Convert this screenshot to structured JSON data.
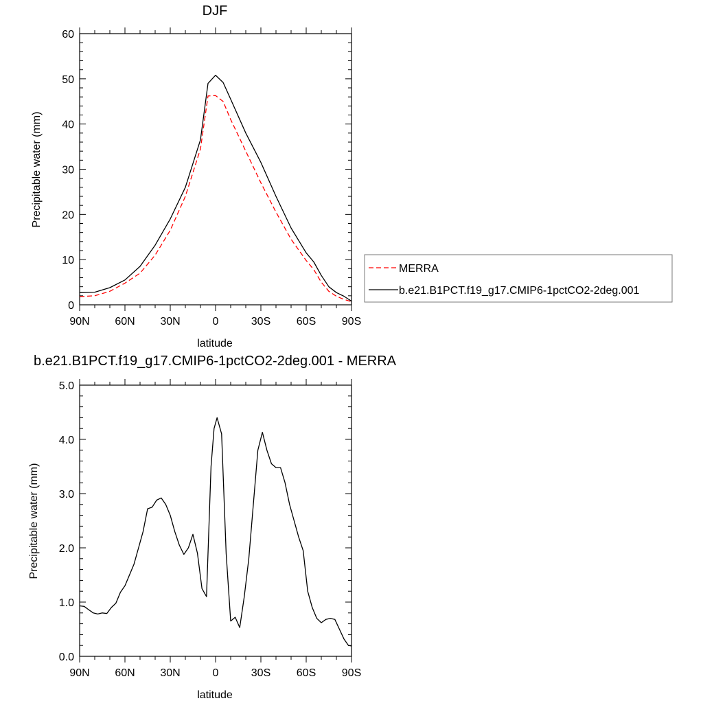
{
  "chart_data": [
    {
      "type": "line",
      "title": "DJF",
      "xlabel": "latitude",
      "ylabel": "Precipitable water (mm)",
      "xlim": [
        90,
        -90
      ],
      "ylim": [
        0,
        60
      ],
      "xticks": [
        90,
        60,
        30,
        0,
        -30,
        -60,
        -90
      ],
      "xtick_labels": [
        "90N",
        "60N",
        "30N",
        "0",
        "30S",
        "60S",
        "90S"
      ],
      "yticks": [
        0,
        10,
        20,
        30,
        40,
        50,
        60
      ],
      "ytick_labels": [
        "0",
        "10",
        "20",
        "30",
        "40",
        "50",
        "60"
      ],
      "grid": false,
      "legend_position": "right",
      "series": [
        {
          "name": "MERRA",
          "color": "#ff0000",
          "dash": "dashed",
          "x": [
            90,
            80,
            70,
            60,
            50,
            40,
            30,
            20,
            10,
            5,
            0,
            -5,
            -10,
            -20,
            -30,
            -40,
            -50,
            -60,
            -65,
            -70,
            -75,
            -80,
            -85,
            -90
          ],
          "y": [
            1.8,
            2.0,
            3.0,
            4.8,
            7.0,
            11.0,
            16.5,
            24.0,
            34.5,
            46.2,
            46.3,
            45.0,
            41.0,
            34.0,
            27.0,
            20.5,
            14.5,
            9.8,
            7.8,
            5.0,
            3.0,
            1.9,
            1.2,
            0.7
          ]
        },
        {
          "name": "b.e21.B1PCT.f19_g17.CMIP6-1pctCO2-2deg.001",
          "color": "#000000",
          "dash": "solid",
          "x": [
            90,
            80,
            70,
            60,
            50,
            40,
            30,
            20,
            10,
            5,
            0,
            -5,
            -10,
            -20,
            -30,
            -40,
            -50,
            -60,
            -65,
            -70,
            -75,
            -80,
            -85,
            -90
          ],
          "y": [
            2.7,
            2.8,
            3.8,
            5.5,
            8.5,
            13.2,
            19.0,
            26.0,
            36.5,
            49.0,
            50.8,
            49.2,
            45.5,
            38.0,
            31.5,
            24.0,
            17.0,
            11.5,
            9.5,
            6.5,
            4.0,
            2.7,
            1.9,
            0.8
          ]
        }
      ]
    },
    {
      "type": "line",
      "title": "b.e21.B1PCT.f19_g17.CMIP6-1pctCO2-2deg.001 - MERRA",
      "xlabel": "latitude",
      "ylabel": "Precipitable water (mm)",
      "xlim": [
        90,
        -90
      ],
      "ylim": [
        0,
        5
      ],
      "xticks": [
        90,
        60,
        30,
        0,
        -30,
        -60,
        -90
      ],
      "xtick_labels": [
        "90N",
        "60N",
        "30N",
        "0",
        "30S",
        "60S",
        "90S"
      ],
      "yticks": [
        0,
        1,
        2,
        3,
        4,
        5
      ],
      "ytick_labels": [
        "0.0",
        "1.0",
        "2.0",
        "3.0",
        "4.0",
        "5.0"
      ],
      "grid": false,
      "series": [
        {
          "color": "#000000",
          "dash": "solid",
          "x": [
            90,
            87,
            84,
            81,
            78,
            75,
            72,
            69,
            66,
            63,
            60,
            57,
            54,
            51,
            48,
            45,
            42,
            39,
            36,
            33,
            30,
            27,
            24,
            21,
            18,
            15,
            12,
            9,
            6,
            3,
            1,
            -1,
            -4,
            -7,
            -10,
            -13,
            -16,
            -19,
            -22,
            -25,
            -28,
            -31,
            -34,
            -37,
            -40,
            -43,
            -46,
            -49,
            -52,
            -55,
            -58,
            -61,
            -64,
            -67,
            -70,
            -73,
            -76,
            -79,
            -82,
            -85,
            -88,
            -90
          ],
          "y": [
            0.93,
            0.92,
            0.86,
            0.8,
            0.78,
            0.8,
            0.79,
            0.9,
            0.98,
            1.18,
            1.3,
            1.5,
            1.7,
            2.0,
            2.3,
            2.72,
            2.75,
            2.88,
            2.92,
            2.8,
            2.6,
            2.3,
            2.05,
            1.88,
            2.0,
            2.25,
            1.9,
            1.25,
            1.1,
            3.5,
            4.2,
            4.4,
            4.1,
            1.9,
            0.65,
            0.72,
            0.53,
            1.1,
            1.8,
            2.8,
            3.8,
            4.13,
            3.8,
            3.55,
            3.48,
            3.48,
            3.2,
            2.8,
            2.5,
            2.2,
            1.95,
            1.2,
            0.9,
            0.7,
            0.62,
            0.68,
            0.7,
            0.68,
            0.5,
            0.32,
            0.2,
            0.19
          ]
        }
      ]
    }
  ]
}
